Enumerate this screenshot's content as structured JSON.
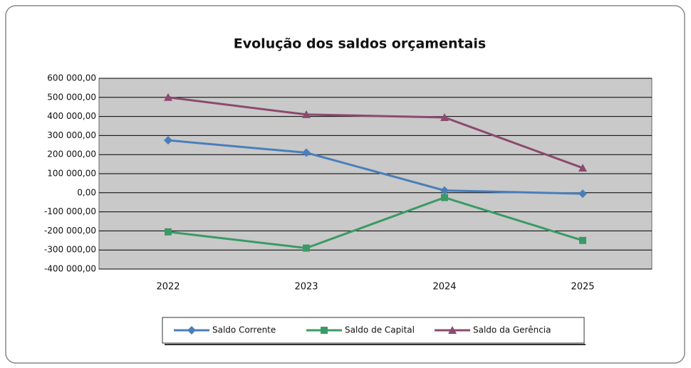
{
  "chart_data": {
    "type": "line",
    "title": "Evolução dos saldos orçamentais",
    "categories": [
      "2022",
      "2023",
      "2024",
      "2025"
    ],
    "series": [
      {
        "name": "Saldo Corrente",
        "color": "#4a7ebb",
        "marker": "diamond",
        "values": [
          275000,
          210000,
          12000,
          -5000
        ]
      },
      {
        "name": "Saldo de Capital",
        "color": "#3a9a66",
        "marker": "square",
        "values": [
          -205000,
          -290000,
          -25000,
          -250000
        ]
      },
      {
        "name": "Saldo da Gerência",
        "color": "#8c4a6e",
        "marker": "triangle",
        "values": [
          500000,
          410000,
          395000,
          130000
        ]
      }
    ],
    "ylim": [
      -400000,
      600000
    ],
    "yticks": [
      {
        "value": 600000,
        "label": "600 000,00"
      },
      {
        "value": 500000,
        "label": "500 000,00"
      },
      {
        "value": 400000,
        "label": "400 000,00"
      },
      {
        "value": 300000,
        "label": "300 000,00"
      },
      {
        "value": 200000,
        "label": "200 000,00"
      },
      {
        "value": 100000,
        "label": "100 000,00"
      },
      {
        "value": 0,
        "label": "0,00"
      },
      {
        "value": -100000,
        "label": "-100 000,00"
      },
      {
        "value": -200000,
        "label": "-200 000,00"
      },
      {
        "value": -300000,
        "label": "-300 000,00"
      },
      {
        "value": -400000,
        "label": "-400 000,00"
      }
    ],
    "grid": true,
    "legend": "bottom",
    "plot_background": "#c9c9c9"
  }
}
